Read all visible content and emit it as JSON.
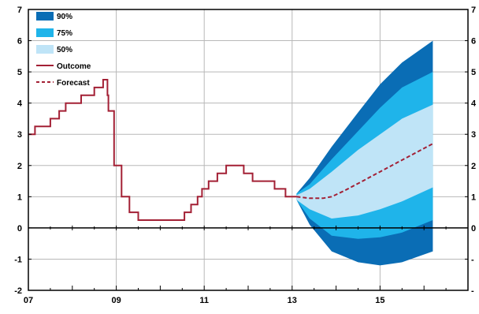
{
  "chart_data": {
    "type": "area",
    "title": "",
    "xlabel": "",
    "ylabel": "",
    "xlim": [
      7,
      17
    ],
    "ylim": [
      -2,
      7
    ],
    "x_tick_labels": [
      "07",
      "09",
      "11",
      "13",
      "15"
    ],
    "x_tick_values": [
      7,
      9,
      11,
      13,
      15
    ],
    "y_tick_values": [
      -2,
      -1,
      0,
      1,
      2,
      3,
      4,
      5,
      6,
      7
    ],
    "left_y_tick_labels": [
      "-2",
      "-1",
      "0",
      "1",
      "2",
      "3",
      "4",
      "5",
      "6",
      "7"
    ],
    "right_y_tick_labels": [
      "-",
      "-",
      "0",
      "1",
      "2",
      "3",
      "4",
      "5",
      "6",
      "7"
    ],
    "grid": true,
    "legend_position": "top-left",
    "legend": [
      {
        "label": "90%",
        "kind": "patch",
        "color": "#0a6db5"
      },
      {
        "label": "75%",
        "kind": "patch",
        "color": "#1fb4ea"
      },
      {
        "label": "50%",
        "kind": "patch",
        "color": "#bfe4f7"
      },
      {
        "label": "Outcome",
        "kind": "line",
        "color": "#a32035"
      },
      {
        "label": "Forecast",
        "kind": "dashed",
        "color": "#a32035"
      }
    ],
    "outcome": {
      "name": "Outcome",
      "color": "#a32035",
      "steps": [
        [
          7.0,
          3.0
        ],
        [
          7.15,
          3.25
        ],
        [
          7.5,
          3.5
        ],
        [
          7.7,
          3.75
        ],
        [
          7.85,
          4.0
        ],
        [
          8.2,
          4.25
        ],
        [
          8.5,
          4.5
        ],
        [
          8.7,
          4.75
        ],
        [
          8.8,
          4.25
        ],
        [
          8.82,
          3.75
        ],
        [
          8.95,
          2.0
        ],
        [
          9.12,
          1.0
        ],
        [
          9.3,
          0.5
        ],
        [
          9.5,
          0.25
        ],
        [
          10.55,
          0.5
        ],
        [
          10.7,
          0.75
        ],
        [
          10.85,
          1.0
        ],
        [
          10.95,
          1.25
        ],
        [
          11.1,
          1.5
        ],
        [
          11.3,
          1.75
        ],
        [
          11.5,
          2.0
        ],
        [
          11.9,
          1.75
        ],
        [
          12.1,
          1.5
        ],
        [
          12.6,
          1.25
        ],
        [
          12.85,
          1.0
        ],
        [
          13.1,
          1.0
        ]
      ]
    },
    "forecast": {
      "name": "Forecast",
      "color": "#a32035",
      "x": [
        13.1,
        13.4,
        13.7,
        13.9,
        14.2,
        14.6,
        15.0,
        15.4,
        15.8,
        16.2
      ],
      "y": [
        1.0,
        0.95,
        0.95,
        1.0,
        1.2,
        1.5,
        1.8,
        2.1,
        2.4,
        2.7
      ]
    },
    "bands": {
      "x": [
        13.1,
        13.4,
        13.9,
        14.5,
        15.0,
        15.5,
        16.2
      ],
      "90": {
        "color": "#0a6db5",
        "upper": [
          1.1,
          1.6,
          2.6,
          3.7,
          4.6,
          5.3,
          6.0
        ],
        "lower": [
          0.9,
          0.1,
          -0.75,
          -1.1,
          -1.2,
          -1.1,
          -0.75
        ]
      },
      "75": {
        "color": "#1fb4ea",
        "upper": [
          1.1,
          1.4,
          2.2,
          3.1,
          3.85,
          4.5,
          5.0
        ],
        "lower": [
          0.9,
          0.3,
          -0.25,
          -0.35,
          -0.3,
          -0.15,
          0.25
        ]
      },
      "50": {
        "color": "#bfe4f7",
        "upper": [
          1.05,
          1.25,
          1.8,
          2.5,
          3.0,
          3.5,
          3.95
        ],
        "lower": [
          0.9,
          0.6,
          0.3,
          0.4,
          0.6,
          0.85,
          1.3
        ]
      }
    },
    "colors": {
      "axis": "#000000",
      "grid": "#b8b8b8"
    }
  }
}
